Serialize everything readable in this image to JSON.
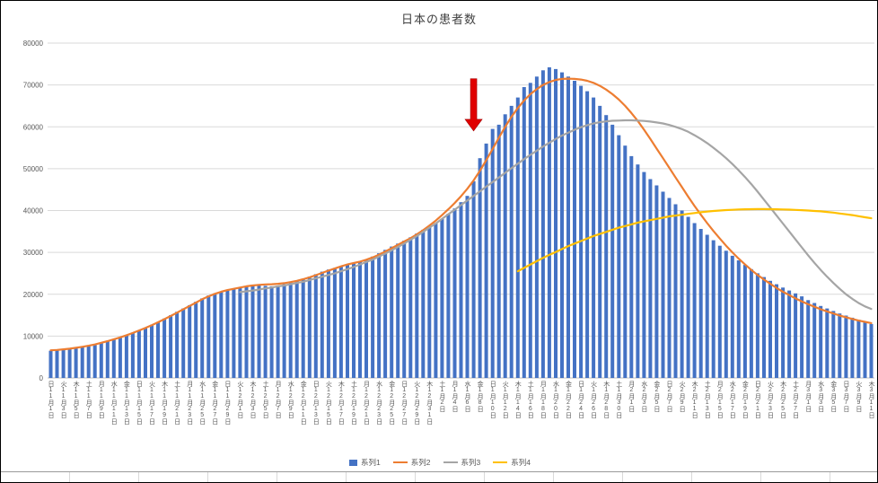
{
  "chart_data": {
    "type": "bar",
    "title": "日本の患者数",
    "ylim": [
      0,
      80000
    ],
    "ytick_step": 10000,
    "y_tick_labels": [
      "0",
      "10000",
      "20000",
      "30000",
      "40000",
      "50000",
      "60000",
      "70000",
      "80000"
    ],
    "grid_color": "#d9d9d9",
    "axis_color": "#bfbfbf",
    "label_color": "#595959",
    "x_tick_every": 2,
    "x_tick_labels": [
      "日11月1日",
      "火11月3日",
      "木11月5日",
      "土11月7日",
      "月11月9日",
      "水11月11日",
      "金11月13日",
      "日11月15日",
      "火11月17日",
      "木11月19日",
      "土11月21日",
      "月11月23日",
      "水11月25日",
      "金11月27日",
      "日11月29日",
      "火12月1日",
      "木12月3日",
      "土12月5日",
      "月12月7日",
      "水12月9日",
      "金12月11日",
      "日12月13日",
      "火12月15日",
      "木12月17日",
      "土12月19日",
      "月12月21日",
      "水12月23日",
      "金12月25日",
      "日12月27日",
      "火12月29日",
      "木12月31日",
      "土1月2日",
      "月1月4日",
      "水1月6日",
      "金1月8日",
      "日1月10日",
      "火1月12日",
      "木1月14日",
      "土1月16日",
      "月1月18日",
      "水1月20日",
      "金1月22日",
      "日1月24日",
      "火1月26日",
      "木1月28日",
      "土1月30日",
      "月2月1日",
      "水2月3日",
      "金2月5日",
      "日2月7日",
      "火2月9日",
      "木2月11日",
      "土2月13日",
      "月2月15日",
      "水2月17日",
      "金2月19日",
      "日2月21日",
      "火2月23日",
      "木2月25日",
      "土2月27日",
      "月3月1日",
      "水3月3日",
      "金3月5日",
      "日3月7日",
      "火3月9日",
      "木3月11日"
    ],
    "bar_series": {
      "name": "系列1",
      "color": "#4472c4",
      "values": [
        6500,
        6600,
        6750,
        6900,
        7100,
        7350,
        7600,
        7900,
        8300,
        8700,
        9200,
        9700,
        10200,
        10800,
        11400,
        12000,
        12700,
        13400,
        14200,
        15000,
        15800,
        16600,
        17400,
        18200,
        19000,
        19700,
        20200,
        20600,
        20900,
        21200,
        21500,
        21800,
        22000,
        22100,
        22000,
        21900,
        22100,
        22400,
        22800,
        23200,
        23700,
        24200,
        24800,
        25400,
        25900,
        26300,
        26700,
        27100,
        27300,
        27700,
        28300,
        29000,
        29800,
        30600,
        31400,
        32100,
        32800,
        33600,
        34500,
        35400,
        36200,
        37000,
        38000,
        39200,
        40500,
        42000,
        43500,
        47000,
        52500,
        56000,
        59500,
        60500,
        63000,
        65000,
        67000,
        69500,
        70500,
        72000,
        73500,
        74200,
        73800,
        73000,
        72000,
        71000,
        69800,
        68500,
        67000,
        65000,
        62800,
        60500,
        58000,
        55500,
        53000,
        51000,
        49200,
        47500,
        46000,
        44500,
        43000,
        41500,
        40000,
        38500,
        37000,
        35600,
        34200,
        32900,
        31600,
        30400,
        29200,
        28100,
        27000,
        26000,
        25000,
        24100,
        23200,
        22400,
        21600,
        20900,
        20200,
        19500,
        18600,
        17900,
        17200,
        16600,
        16000,
        15400,
        14900,
        14400,
        13900,
        13400,
        12900
      ]
    },
    "line_series": [
      {
        "name": "系列2",
        "color": "#ed7d31",
        "start_index": 0,
        "values": [
          6600,
          6700,
          6850,
          7000,
          7200,
          7450,
          7700,
          8000,
          8400,
          8800,
          9250,
          9700,
          10200,
          10750,
          11350,
          11950,
          12600,
          13300,
          14050,
          14800,
          15600,
          16400,
          17200,
          18000,
          18800,
          19500,
          20100,
          20600,
          21000,
          21300,
          21600,
          21900,
          22100,
          22250,
          22350,
          22400,
          22500,
          22650,
          22900,
          23200,
          23600,
          24050,
          24550,
          25100,
          25650,
          26150,
          26650,
          27100,
          27450,
          27800,
          28250,
          28800,
          29450,
          30200,
          31000,
          31800,
          32600,
          33400,
          34300,
          35300,
          36400,
          37600,
          38900,
          40300,
          41800,
          43400,
          45200,
          47200,
          49500,
          52000,
          54700,
          57400,
          60000,
          62400,
          64500,
          66300,
          67800,
          69000,
          70000,
          70700,
          71200,
          71450,
          71500,
          71450,
          71300,
          71000,
          70500,
          69800,
          68900,
          67800,
          66500,
          65000,
          63300,
          61400,
          59300,
          57100,
          54800,
          52500,
          50200,
          47900,
          45600,
          43300,
          41100,
          39000,
          37000,
          35100,
          33300,
          31600,
          30000,
          28500,
          27100,
          25800,
          24600,
          23500,
          22500,
          21500,
          20600,
          19800,
          19000,
          18300,
          17600,
          17000,
          16400,
          15900,
          15400,
          14900,
          14500,
          14100,
          13700,
          13400,
          13100
        ]
      },
      {
        "name": "系列3",
        "color": "#a5a5a5",
        "start_index": 30,
        "values": [
          20500,
          20700,
          20900,
          21100,
          21400,
          21600,
          21900,
          22100,
          22400,
          22700,
          23000,
          23400,
          23800,
          24200,
          24600,
          25000,
          25500,
          26000,
          26500,
          27100,
          27700,
          28300,
          29000,
          29700,
          30500,
          31300,
          32100,
          33000,
          33900,
          34900,
          35900,
          36900,
          38000,
          39100,
          40200,
          41300,
          42400,
          43500,
          44600,
          45700,
          46800,
          47900,
          49000,
          50100,
          51200,
          52300,
          53300,
          54300,
          55300,
          56200,
          57100,
          57900,
          58600,
          59300,
          59900,
          60400,
          60800,
          61100,
          61300,
          61450,
          61500,
          61550,
          61550,
          61500,
          61400,
          61250,
          61050,
          60800,
          60450,
          60000,
          59450,
          58800,
          58000,
          57100,
          56100,
          55000,
          53800,
          52500,
          51100,
          49600,
          48000,
          46300,
          44500,
          42600,
          40700,
          38800,
          36900,
          35000,
          33100,
          31200,
          29300,
          27500,
          25800,
          24200,
          22700,
          21300,
          20000,
          18900,
          17900,
          17100,
          16500
        ]
      },
      {
        "name": "系列4",
        "color": "#ffc000",
        "start_index": 74,
        "values": [
          25500,
          26300,
          27100,
          27900,
          28700,
          29400,
          30100,
          30800,
          31500,
          32100,
          32700,
          33300,
          33900,
          34400,
          34900,
          35400,
          35900,
          36300,
          36700,
          37100,
          37400,
          37700,
          38000,
          38300,
          38600,
          38800,
          39000,
          39200,
          39400,
          39600,
          39750,
          39900,
          40000,
          40100,
          40180,
          40250,
          40300,
          40330,
          40350,
          40350,
          40330,
          40300,
          40260,
          40210,
          40150,
          40080,
          40000,
          39900,
          39800,
          39650,
          39500,
          39300,
          39100,
          38900,
          38650,
          38400,
          38150
        ]
      }
    ],
    "legend": [
      {
        "label": "系列1",
        "type": "bar",
        "color": "#4472c4"
      },
      {
        "label": "系列2",
        "type": "line",
        "color": "#ed7d31"
      },
      {
        "label": "系列3",
        "type": "line",
        "color": "#a5a5a5"
      },
      {
        "label": "系列4",
        "type": "line",
        "color": "#ffc000"
      }
    ],
    "annotation": {
      "type": "down-arrow",
      "color": "#e00000",
      "border_color": "#a00000",
      "index": 67,
      "tip_value": 59000,
      "tail_value": 71500
    }
  }
}
